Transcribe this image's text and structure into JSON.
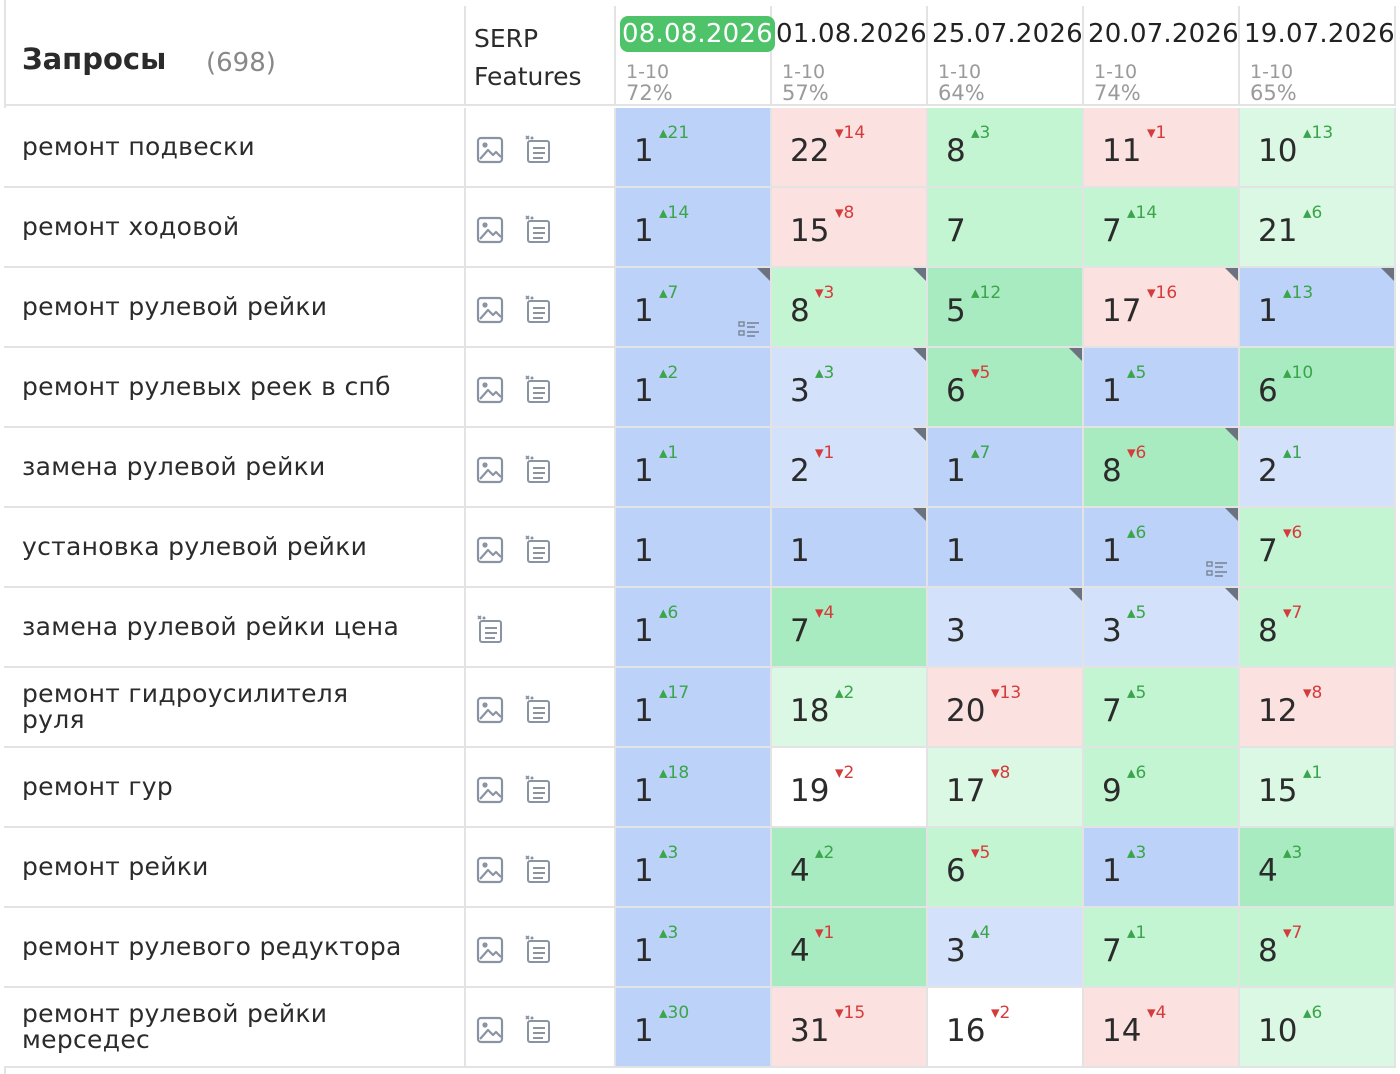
{
  "header": {
    "title": "Запросы",
    "count": "(698)",
    "serp_line1": "SERP",
    "serp_line2": "Features",
    "dates": [
      {
        "label": "08.08.2026",
        "range": "1-10",
        "pct": "72%",
        "active": true
      },
      {
        "label": "01.08.2026",
        "range": "1-10",
        "pct": "57%",
        "active": false
      },
      {
        "label": "25.07.2026",
        "range": "1-10",
        "pct": "64%",
        "active": false
      },
      {
        "label": "20.07.2026",
        "range": "1-10",
        "pct": "74%",
        "active": false
      },
      {
        "label": "19.07.2026",
        "range": "1-10",
        "pct": "65%",
        "active": false
      }
    ]
  },
  "colors": {
    "active_date": "#4fc36a",
    "blue": "#bcd2f8",
    "light_blue": "#d3e1fb",
    "green": "#a8ebc0",
    "light_green": "#c3f5d3",
    "mint": "#daf8e4",
    "pink": "#fbe1df",
    "delta_up": "#3aa54a",
    "delta_down": "#d43c3c"
  },
  "rows": [
    {
      "query": "ремонт подвески",
      "features": [
        "image-icon",
        "snippet-icon"
      ],
      "cells": [
        {
          "v": "1",
          "d": "21",
          "dir": "up",
          "c": "blue"
        },
        {
          "v": "22",
          "d": "14",
          "dir": "down",
          "c": "pink"
        },
        {
          "v": "8",
          "d": "3",
          "dir": "up",
          "c": "lgreen"
        },
        {
          "v": "11",
          "d": "1",
          "dir": "down",
          "c": "pink"
        },
        {
          "v": "10",
          "d": "13",
          "dir": "up",
          "c": "mint"
        }
      ]
    },
    {
      "query": "ремонт ходовой",
      "features": [
        "image-icon",
        "snippet-icon"
      ],
      "cells": [
        {
          "v": "1",
          "d": "14",
          "dir": "up",
          "c": "blue"
        },
        {
          "v": "15",
          "d": "8",
          "dir": "down",
          "c": "pink"
        },
        {
          "v": "7",
          "d": "",
          "dir": "",
          "c": "lgreen"
        },
        {
          "v": "7",
          "d": "14",
          "dir": "up",
          "c": "lgreen"
        },
        {
          "v": "21",
          "d": "6",
          "dir": "up",
          "c": "mint"
        }
      ]
    },
    {
      "query": "ремонт рулевой рейки",
      "features": [
        "image-icon",
        "snippet-icon"
      ],
      "cells": [
        {
          "v": "1",
          "d": "7",
          "dir": "up",
          "c": "blue",
          "corner": true,
          "snip": true
        },
        {
          "v": "8",
          "d": "3",
          "dir": "down",
          "c": "lgreen",
          "corner": true
        },
        {
          "v": "5",
          "d": "12",
          "dir": "up",
          "c": "green"
        },
        {
          "v": "17",
          "d": "16",
          "dir": "down",
          "c": "pink",
          "corner": true
        },
        {
          "v": "1",
          "d": "13",
          "dir": "up",
          "c": "blue",
          "corner": true
        }
      ]
    },
    {
      "query": "ремонт рулевых реек в спб",
      "features": [
        "image-icon",
        "snippet-icon"
      ],
      "cells": [
        {
          "v": "1",
          "d": "2",
          "dir": "up",
          "c": "blue"
        },
        {
          "v": "3",
          "d": "3",
          "dir": "up",
          "c": "lblue",
          "corner": true
        },
        {
          "v": "6",
          "d": "5",
          "dir": "down",
          "c": "green",
          "corner": true
        },
        {
          "v": "1",
          "d": "5",
          "dir": "up",
          "c": "blue"
        },
        {
          "v": "6",
          "d": "10",
          "dir": "up",
          "c": "green"
        }
      ]
    },
    {
      "query": "замена рулевой рейки",
      "features": [
        "image-icon",
        "snippet-icon"
      ],
      "cells": [
        {
          "v": "1",
          "d": "1",
          "dir": "up",
          "c": "blue"
        },
        {
          "v": "2",
          "d": "1",
          "dir": "down",
          "c": "lblue",
          "corner": true
        },
        {
          "v": "1",
          "d": "7",
          "dir": "up",
          "c": "blue"
        },
        {
          "v": "8",
          "d": "6",
          "dir": "down",
          "c": "green",
          "corner": true
        },
        {
          "v": "2",
          "d": "1",
          "dir": "up",
          "c": "lblue"
        }
      ]
    },
    {
      "query": "установка рулевой рейки",
      "features": [
        "image-icon",
        "snippet-icon"
      ],
      "cells": [
        {
          "v": "1",
          "d": "",
          "dir": "",
          "c": "blue"
        },
        {
          "v": "1",
          "d": "",
          "dir": "",
          "c": "blue",
          "corner": true
        },
        {
          "v": "1",
          "d": "",
          "dir": "",
          "c": "blue"
        },
        {
          "v": "1",
          "d": "6",
          "dir": "up",
          "c": "blue",
          "corner": true,
          "snip": true
        },
        {
          "v": "7",
          "d": "6",
          "dir": "down",
          "c": "lgreen"
        }
      ]
    },
    {
      "query": "замена рулевой рейки цена",
      "features": [
        "snippet-icon"
      ],
      "cells": [
        {
          "v": "1",
          "d": "6",
          "dir": "up",
          "c": "blue"
        },
        {
          "v": "7",
          "d": "4",
          "dir": "down",
          "c": "green"
        },
        {
          "v": "3",
          "d": "",
          "dir": "",
          "c": "lblue",
          "corner": true
        },
        {
          "v": "3",
          "d": "5",
          "dir": "up",
          "c": "lblue",
          "corner": true
        },
        {
          "v": "8",
          "d": "7",
          "dir": "down",
          "c": "lgreen"
        }
      ]
    },
    {
      "query": "ремонт гидроусилителя руля",
      "features": [
        "image-icon",
        "snippet-icon"
      ],
      "cells": [
        {
          "v": "1",
          "d": "17",
          "dir": "up",
          "c": "blue"
        },
        {
          "v": "18",
          "d": "2",
          "dir": "up",
          "c": "mint"
        },
        {
          "v": "20",
          "d": "13",
          "dir": "down",
          "c": "pink"
        },
        {
          "v": "7",
          "d": "5",
          "dir": "up",
          "c": "lgreen"
        },
        {
          "v": "12",
          "d": "8",
          "dir": "down",
          "c": "pink"
        }
      ]
    },
    {
      "query": "ремонт гур",
      "features": [
        "image-icon",
        "snippet-icon"
      ],
      "cells": [
        {
          "v": "1",
          "d": "18",
          "dir": "up",
          "c": "blue"
        },
        {
          "v": "19",
          "d": "2",
          "dir": "down",
          "c": "white"
        },
        {
          "v": "17",
          "d": "8",
          "dir": "down",
          "c": "mint"
        },
        {
          "v": "9",
          "d": "6",
          "dir": "up",
          "c": "lgreen"
        },
        {
          "v": "15",
          "d": "1",
          "dir": "up",
          "c": "mint"
        }
      ]
    },
    {
      "query": "ремонт рейки",
      "features": [
        "image-icon",
        "snippet-icon"
      ],
      "cells": [
        {
          "v": "1",
          "d": "3",
          "dir": "up",
          "c": "blue"
        },
        {
          "v": "4",
          "d": "2",
          "dir": "up",
          "c": "green"
        },
        {
          "v": "6",
          "d": "5",
          "dir": "down",
          "c": "lgreen"
        },
        {
          "v": "1",
          "d": "3",
          "dir": "up",
          "c": "blue"
        },
        {
          "v": "4",
          "d": "3",
          "dir": "up",
          "c": "green"
        }
      ]
    },
    {
      "query": "ремонт рулевого редуктора",
      "features": [
        "image-icon",
        "snippet-icon"
      ],
      "cells": [
        {
          "v": "1",
          "d": "3",
          "dir": "up",
          "c": "blue"
        },
        {
          "v": "4",
          "d": "1",
          "dir": "down",
          "c": "green"
        },
        {
          "v": "3",
          "d": "4",
          "dir": "up",
          "c": "lblue"
        },
        {
          "v": "7",
          "d": "1",
          "dir": "up",
          "c": "lgreen"
        },
        {
          "v": "8",
          "d": "7",
          "dir": "down",
          "c": "lgreen"
        }
      ]
    },
    {
      "query": "ремонт рулевой рейки мерседес",
      "features": [
        "image-icon",
        "snippet-icon"
      ],
      "cells": [
        {
          "v": "1",
          "d": "30",
          "dir": "up",
          "c": "blue"
        },
        {
          "v": "31",
          "d": "15",
          "dir": "down",
          "c": "pink"
        },
        {
          "v": "16",
          "d": "2",
          "dir": "down",
          "c": "white"
        },
        {
          "v": "14",
          "d": "4",
          "dir": "down",
          "c": "pink"
        },
        {
          "v": "10",
          "d": "6",
          "dir": "up",
          "c": "mint"
        }
      ]
    }
  ]
}
